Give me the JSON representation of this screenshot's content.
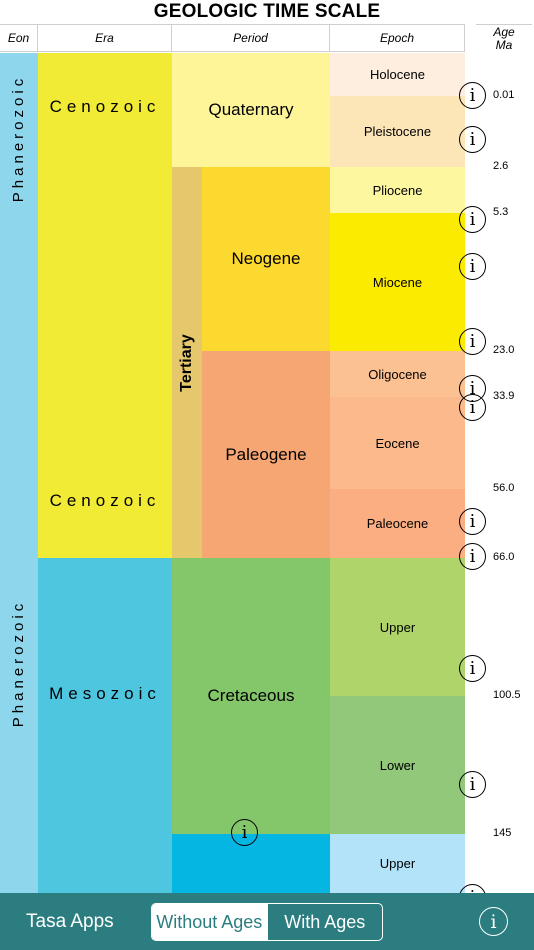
{
  "title": "GEOLOGIC TIME SCALE",
  "headers": {
    "eon": "Eon",
    "era": "Era",
    "period": "Period",
    "epoch": "Epoch",
    "age_line1": "Age",
    "age_line2": "Ma"
  },
  "eons": [
    "Phanerozoic",
    "Phanerozoic"
  ],
  "eras": {
    "cenozoic_top": "Cenozoic",
    "cenozoic_bottom": "Cenozoic",
    "mesozoic": "Mesozoic"
  },
  "periods": {
    "quaternary": "Quaternary",
    "tertiary": "Tertiary",
    "neogene": "Neogene",
    "paleogene": "Paleogene",
    "cretaceous": "Cretaceous"
  },
  "epochs": [
    "Holocene",
    "Pleistocene",
    "Pliocene",
    "Miocene",
    "Oligocene",
    "Eocene",
    "Paleocene",
    "Upper",
    "Lower",
    "Upper"
  ],
  "ages": [
    "0.01",
    "2.6",
    "5.3",
    "23.0",
    "33.9",
    "56.0",
    "66.0",
    "100.5",
    "145"
  ],
  "info_icon_glyph": "i",
  "bottom_bar": {
    "brand": "Tasa Apps",
    "segments": [
      "Without Ages",
      "With Ages"
    ],
    "selected": "Without Ages"
  },
  "colors": {
    "eon": "#8ed6ec",
    "cenozoic": "#f2eb35",
    "mesozoic": "#4ec6df",
    "quaternary": "#fdf598",
    "tertiary": "#e5c76c",
    "neogene": "#fcd92f",
    "paleogene": "#f6a672",
    "cretaceous": "#84c66a",
    "jurassic": "#06b6e2",
    "holocene": "#fdeee0",
    "pleistocene": "#fce6b8",
    "pliocene": "#fdf7a0",
    "miocene": "#fbeb00",
    "oligocene": "#fcc192",
    "eocene": "#fbb98c",
    "paleocene": "#fbae82",
    "upper_cretaceous": "#aed46a",
    "lower_cretaceous": "#92c87a",
    "upper_jurassic": "#b2e3f8",
    "bar": "#2b7d80"
  }
}
